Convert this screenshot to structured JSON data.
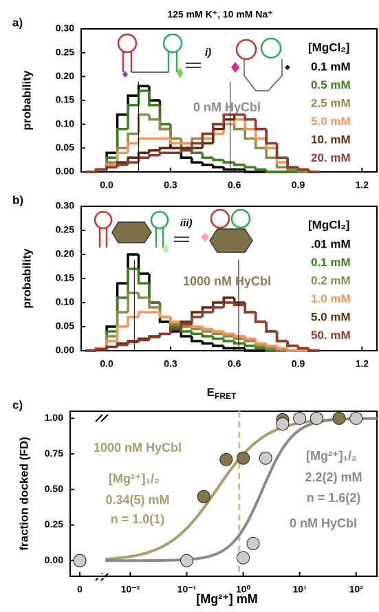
{
  "figure_title": "125 mM K⁺, 10 mM Na⁺",
  "chart_data": [
    {
      "type": "histogram",
      "panel": "a)",
      "ylabel": "probability",
      "legend_title": "[MgCl₂]",
      "annotation": "i)",
      "state_label": "0 nM HyCbl",
      "state_color": "#8c8c8c",
      "bins": [
        -0.1,
        -0.05,
        0,
        0.05,
        0.1,
        0.15,
        0.2,
        0.25,
        0.3,
        0.35,
        0.4,
        0.45,
        0.5,
        0.55,
        0.6,
        0.65,
        0.7,
        0.75,
        0.8,
        0.85,
        0.9,
        0.95,
        1.0
      ],
      "xlim": [
        -0.12,
        1.27
      ],
      "ylim": [
        0,
        0.3
      ],
      "xticks": [
        {
          "value": 0,
          "label": "0.0"
        },
        0.3,
        0.6,
        0.9,
        1.2
      ],
      "yticks": [
        {
          "value": 0,
          "label": "0.00"
        },
        {
          "value": 0.05,
          "label": "0.05"
        },
        {
          "value": 0.1,
          "label": "0.10"
        },
        {
          "value": 0.15,
          "label": "0.15"
        },
        {
          "value": 0.2,
          "label": "0.20"
        },
        {
          "value": 0.25,
          "label": "0.25"
        },
        {
          "value": 0.3,
          "label": "0.30"
        }
      ],
      "peak_lines": [
        0.15,
        0.58
      ],
      "series": [
        {
          "name": "0.1 mM",
          "color": "#000000",
          "values": [
            0,
            0.005,
            0.04,
            0.12,
            0.16,
            0.18,
            0.15,
            0.09,
            0.05,
            0.03,
            0.02,
            0.015,
            0.01,
            0.005,
            0.005,
            0,
            0,
            0,
            0,
            0,
            0,
            0
          ]
        },
        {
          "name": "0.5 mM",
          "color": "#3d7f1f",
          "values": [
            0,
            0.005,
            0.03,
            0.09,
            0.14,
            0.17,
            0.14,
            0.1,
            0.07,
            0.05,
            0.04,
            0.03,
            0.025,
            0.02,
            0.015,
            0.01,
            0.005,
            0,
            0,
            0,
            0,
            0
          ]
        },
        {
          "name": "2.5 mM",
          "color": "#8e8a4c",
          "values": [
            0,
            0.005,
            0.02,
            0.05,
            0.08,
            0.12,
            0.11,
            0.09,
            0.07,
            0.06,
            0.07,
            0.08,
            0.1,
            0.11,
            0.09,
            0.07,
            0.05,
            0.03,
            0.01,
            0.005,
            0,
            0
          ]
        },
        {
          "name": "5.0 mM",
          "color": "#f2965c",
          "values": [
            0,
            0.005,
            0.015,
            0.04,
            0.06,
            0.07,
            0.07,
            0.07,
            0.06,
            0.06,
            0.06,
            0.07,
            0.08,
            0.1,
            0.11,
            0.09,
            0.07,
            0.05,
            0.02,
            0.01,
            0.005,
            0
          ]
        },
        {
          "name": "10. mM",
          "color": "#5b2e0d",
          "values": [
            0,
            0.005,
            0.01,
            0.02,
            0.03,
            0.04,
            0.045,
            0.05,
            0.05,
            0.05,
            0.05,
            0.06,
            0.09,
            0.11,
            0.12,
            0.11,
            0.09,
            0.06,
            0.03,
            0.01,
            0.005,
            0
          ]
        },
        {
          "name": "20. mM",
          "color": "#8d3c2f",
          "values": [
            0,
            0.005,
            0.01,
            0.015,
            0.02,
            0.03,
            0.035,
            0.04,
            0.04,
            0.045,
            0.06,
            0.08,
            0.1,
            0.12,
            0.12,
            0.11,
            0.09,
            0.06,
            0.03,
            0.01,
            0.005,
            0
          ]
        }
      ]
    },
    {
      "type": "histogram",
      "panel": "b)",
      "ylabel": "probability",
      "legend_title": "[MgCl₂]",
      "annotation": "iii)",
      "state_label": "1000 nM HyCbl",
      "state_color": "#8b7d4e",
      "xlabel": "E",
      "xlabel_sub": "FRET",
      "bins": [
        -0.1,
        -0.05,
        0,
        0.05,
        0.1,
        0.15,
        0.2,
        0.25,
        0.3,
        0.35,
        0.4,
        0.45,
        0.5,
        0.55,
        0.6,
        0.65,
        0.7,
        0.75,
        0.8,
        0.85,
        0.9,
        0.95,
        1.0
      ],
      "xlim": [
        -0.12,
        1.27
      ],
      "ylim": [
        0,
        0.3
      ],
      "xticks": [
        {
          "value": 0,
          "label": "0.0"
        },
        0.3,
        0.6,
        0.9,
        1.2
      ],
      "yticks": [
        {
          "value": 0,
          "label": "0.00"
        },
        {
          "value": 0.05,
          "label": "0.05"
        },
        {
          "value": 0.1,
          "label": "0.10"
        },
        {
          "value": 0.15,
          "label": "0.15"
        },
        {
          "value": 0.2,
          "label": "0.20"
        },
        {
          "value": 0.25,
          "label": "0.25"
        },
        {
          "value": 0.3,
          "label": "0.30"
        }
      ],
      "peak_lines": [
        0.13,
        0.62
      ],
      "series": [
        {
          "name": ".01 mM",
          "color": "#000000",
          "values": [
            0,
            0.005,
            0.05,
            0.14,
            0.2,
            0.16,
            0.1,
            0.06,
            0.04,
            0.03,
            0.02,
            0.015,
            0.01,
            0.005,
            0.005,
            0,
            0,
            0,
            0,
            0,
            0,
            0
          ]
        },
        {
          "name": "0.1 mM",
          "color": "#3d7f1f",
          "values": [
            0,
            0.005,
            0.04,
            0.11,
            0.17,
            0.14,
            0.1,
            0.07,
            0.05,
            0.04,
            0.035,
            0.03,
            0.025,
            0.02,
            0.015,
            0.01,
            0.005,
            0,
            0,
            0,
            0,
            0
          ]
        },
        {
          "name": "0.2 mM",
          "color": "#8e8a4c",
          "values": [
            0,
            0.005,
            0.03,
            0.08,
            0.12,
            0.11,
            0.09,
            0.07,
            0.055,
            0.05,
            0.045,
            0.04,
            0.035,
            0.03,
            0.025,
            0.02,
            0.01,
            0.005,
            0,
            0,
            0,
            0
          ]
        },
        {
          "name": "1.0 mM",
          "color": "#f2965c",
          "values": [
            0,
            0.005,
            0.02,
            0.05,
            0.07,
            0.08,
            0.08,
            0.07,
            0.06,
            0.055,
            0.05,
            0.045,
            0.04,
            0.035,
            0.03,
            0.025,
            0.015,
            0.01,
            0.005,
            0,
            0,
            0
          ]
        },
        {
          "name": "5.0 mM",
          "color": "#5b2e0d",
          "values": [
            0,
            0.003,
            0.008,
            0.015,
            0.02,
            0.025,
            0.03,
            0.035,
            0.045,
            0.06,
            0.08,
            0.09,
            0.1,
            0.11,
            0.1,
            0.08,
            0.06,
            0.04,
            0.02,
            0.01,
            0.005,
            0
          ]
        },
        {
          "name": "50. mM",
          "color": "#8d3c2f",
          "values": [
            0,
            0.003,
            0.008,
            0.012,
            0.018,
            0.022,
            0.028,
            0.035,
            0.045,
            0.055,
            0.07,
            0.08,
            0.09,
            0.1,
            0.095,
            0.08,
            0.06,
            0.04,
            0.02,
            0.01,
            0.005,
            0
          ]
        }
      ]
    },
    {
      "type": "scatter",
      "panel": "c)",
      "ylabel": "fraction docked (FD)",
      "xlabel": "[Mg²⁺] mM",
      "log_x": true,
      "xlim": [
        0.0036,
        234
      ],
      "ylim": [
        -0.11,
        1.05
      ],
      "xticks": [
        0,
        {
          "value": 0.01,
          "label": "10⁻²"
        },
        {
          "value": 0.1,
          "label": "10⁻¹"
        },
        {
          "value": 1,
          "label": "10⁰"
        },
        {
          "value": 10,
          "label": "10¹"
        },
        {
          "value": 100,
          "label": "10²"
        }
      ],
      "yticks": [
        {
          "value": 0,
          "label": "0.00"
        },
        {
          "value": 0.25,
          "label": "0.25"
        },
        {
          "value": 0.5,
          "label": "0.50"
        },
        {
          "value": 0.75,
          "label": "0.75"
        },
        {
          "value": 1,
          "label": "1.00"
        }
      ],
      "dashed_line": 0.85,
      "series": [
        {
          "name": "1000 nM HyCbl",
          "color": "#85764a",
          "line_color": "#ab9d6c",
          "half_label": "[Mg²⁺]₁/₂",
          "k_label": "0.34(5) mM",
          "n_label": "n = 1.0(1)",
          "k": 0.34,
          "n": 1.0,
          "x": [
            0,
            0.2,
            0.5,
            1,
            5,
            20,
            50
          ],
          "values": [
            0,
            0.45,
            0.71,
            0.72,
            0.99,
            1.0,
            1.0
          ]
        },
        {
          "name": "0 nM HyCbl",
          "color": "#cccccc",
          "line_color": "#8a8a8a",
          "half_label": "[Mg²⁺]₁/₂",
          "k_label": "2.2(2) mM",
          "n_label": "n = 1.6(2)",
          "k": 2.2,
          "n": 1.6,
          "x": [
            0,
            0.1,
            1,
            1.5,
            2.5,
            5,
            10,
            20,
            100
          ],
          "values": [
            0,
            0,
            0.02,
            0.12,
            0.72,
            0.96,
            1.0,
            1.0,
            1.0
          ]
        }
      ]
    }
  ]
}
